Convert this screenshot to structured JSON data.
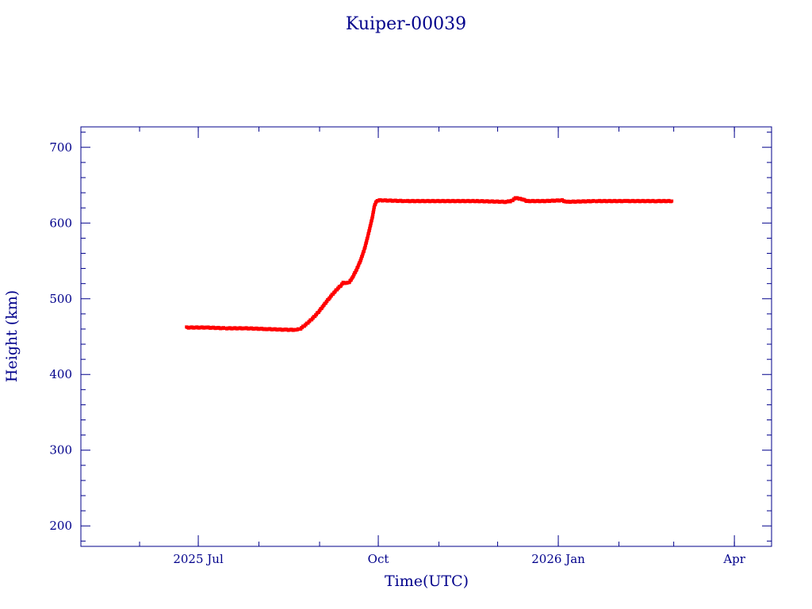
{
  "chart_data": {
    "type": "scatter",
    "title": "Kuiper-00039",
    "xlabel": "Time(UTC)",
    "ylabel": "Height (km)",
    "xlim": [
      "2025-05-02",
      "2026-04-20"
    ],
    "ylim": [
      173,
      727
    ],
    "yticks": [
      200,
      300,
      400,
      500,
      600,
      700
    ],
    "xticks": [
      {
        "date": "2025-07-01",
        "label": "2025 Jul"
      },
      {
        "date": "2025-10-01",
        "label": "Oct"
      },
      {
        "date": "2026-01-01",
        "label": "2026 Jan"
      },
      {
        "date": "2026-04-01",
        "label": "Apr"
      }
    ],
    "grid": false,
    "frame_color": "#00008b",
    "text_color": "#00008b",
    "series": [
      {
        "color": "#ff0000",
        "points": [
          [
            "2025-06-25",
            462
          ],
          [
            "2025-07-05",
            462
          ],
          [
            "2025-07-15",
            461
          ],
          [
            "2025-07-25",
            461
          ],
          [
            "2025-08-05",
            460
          ],
          [
            "2025-08-15",
            459
          ],
          [
            "2025-08-20",
            459
          ],
          [
            "2025-08-22",
            460
          ],
          [
            "2025-08-25",
            466
          ],
          [
            "2025-08-28",
            473
          ],
          [
            "2025-08-31",
            481
          ],
          [
            "2025-09-03",
            491
          ],
          [
            "2025-09-06",
            501
          ],
          [
            "2025-09-09",
            510
          ],
          [
            "2025-09-12",
            518
          ],
          [
            "2025-09-13",
            521
          ],
          [
            "2025-09-16",
            521
          ],
          [
            "2025-09-18",
            529
          ],
          [
            "2025-09-20",
            539
          ],
          [
            "2025-09-22",
            551
          ],
          [
            "2025-09-24",
            566
          ],
          [
            "2025-09-26",
            586
          ],
          [
            "2025-09-28",
            608
          ],
          [
            "2025-09-29",
            622
          ],
          [
            "2025-09-30",
            629
          ],
          [
            "2025-10-02",
            630
          ],
          [
            "2025-10-15",
            629
          ],
          [
            "2025-11-01",
            629
          ],
          [
            "2025-11-20",
            629
          ],
          [
            "2025-12-05",
            628
          ],
          [
            "2025-12-08",
            629
          ],
          [
            "2025-12-10",
            633
          ],
          [
            "2025-12-13",
            632
          ],
          [
            "2025-12-16",
            629
          ],
          [
            "2025-12-25",
            629
          ],
          [
            "2026-01-03",
            630
          ],
          [
            "2026-01-05",
            628
          ],
          [
            "2026-01-20",
            629
          ],
          [
            "2026-02-05",
            629
          ],
          [
            "2026-02-20",
            629
          ],
          [
            "2026-02-28",
            629
          ]
        ]
      }
    ]
  }
}
